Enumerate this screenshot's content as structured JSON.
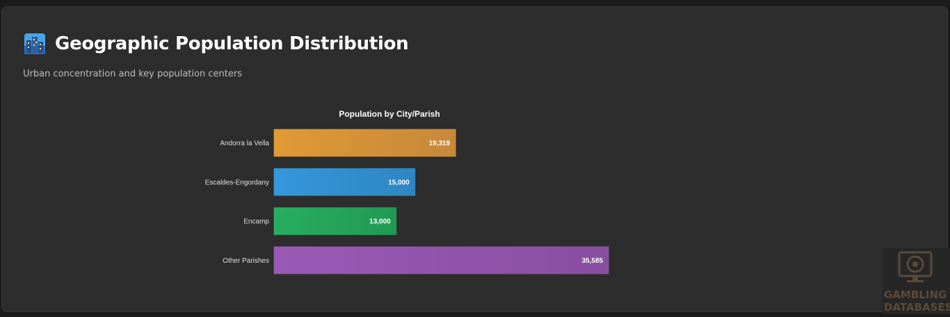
{
  "header": {
    "title": "Geographic Population Distribution",
    "subtitle": "Urban concentration and key population centers"
  },
  "icons": {
    "title_icon": "cityscape-icon",
    "watermark_icon": "monitor-chip-icon"
  },
  "watermark": {
    "line1": "GAMBLING",
    "line2": "DATABASES"
  },
  "colors": {
    "card_bg": "#2d2d2d",
    "page_bg": "#1b1b1b",
    "bar_colors": [
      "#e09a35",
      "#3498db",
      "#27ae60",
      "#9b59b6"
    ],
    "bar_colors_end": [
      "#c6893a",
      "#2e86c1",
      "#229954",
      "#884ea0"
    ]
  },
  "chart_data": {
    "type": "bar",
    "orientation": "horizontal",
    "title": "Population by City/Parish",
    "categories": [
      "Andorra la Vella",
      "Escaldes-Engordany",
      "Encamp",
      "Other Parishes"
    ],
    "values": [
      19319,
      15000,
      13000,
      35585
    ],
    "value_labels": [
      "19,319",
      "15,000",
      "13,000",
      "35,585"
    ],
    "xlim": [
      0,
      50000
    ],
    "grid": false,
    "legend": "none"
  }
}
